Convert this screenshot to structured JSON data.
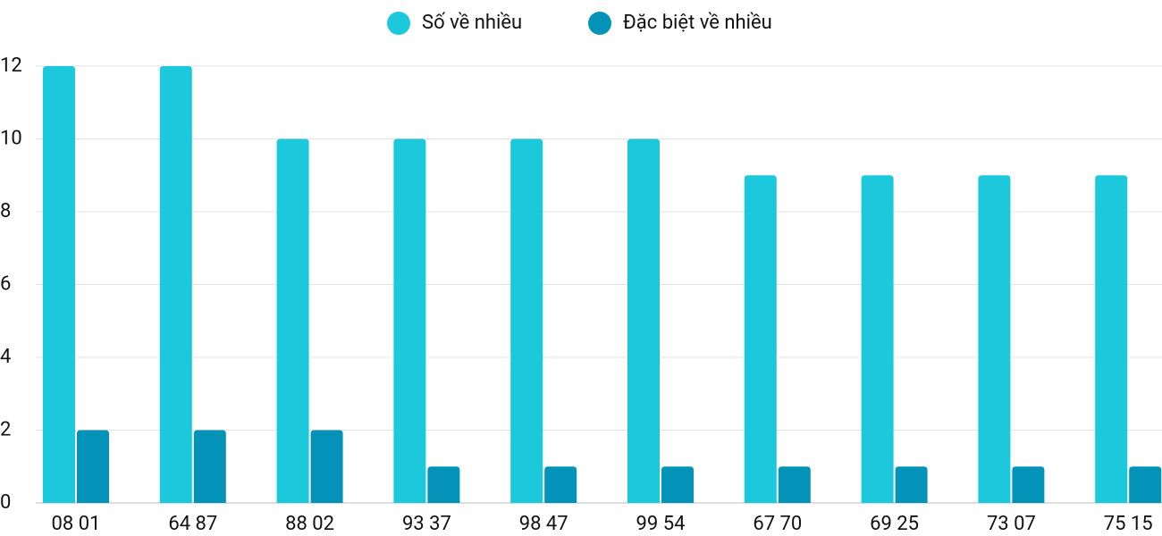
{
  "chart_data": {
    "type": "bar",
    "categories": [
      "08 01",
      "64 87",
      "88 02",
      "93 37",
      "98 47",
      "99 54",
      "67 70",
      "69 25",
      "73 07",
      "75 15"
    ],
    "series": [
      {
        "name": "Số về nhiều",
        "color": "#1bc8dc",
        "values": [
          12,
          12,
          10,
          10,
          10,
          10,
          9,
          9,
          9,
          9
        ]
      },
      {
        "name": "Đặc biệt về nhiều",
        "color": "#0493b8",
        "values": [
          2,
          2,
          2,
          1,
          1,
          1,
          1,
          1,
          1,
          1
        ]
      }
    ],
    "ylim": [
      0,
      12
    ],
    "yticks": [
      0,
      2,
      4,
      6,
      8,
      10,
      12
    ],
    "grid": true,
    "legend": "top"
  }
}
